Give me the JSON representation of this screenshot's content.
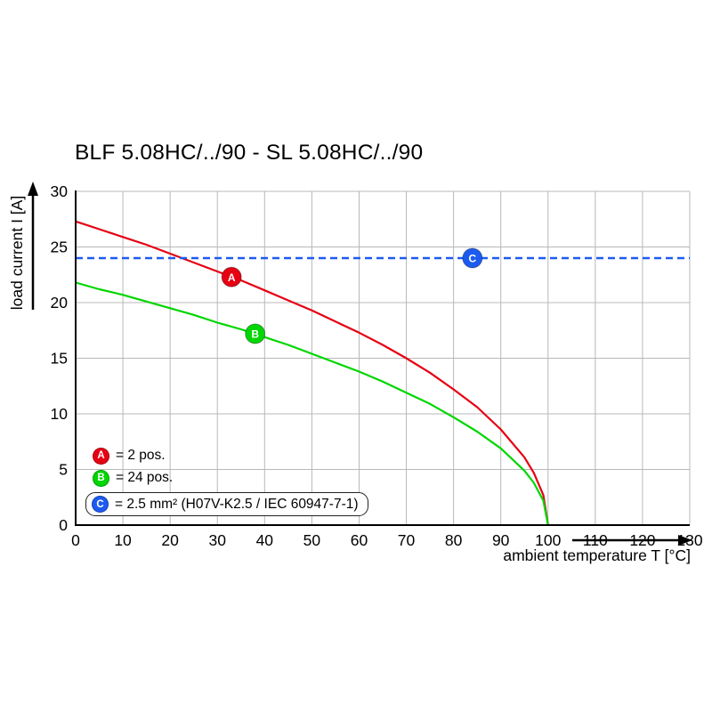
{
  "title": "BLF 5.08HC/../90 - SL 5.08HC/../90",
  "chart_data": {
    "type": "line",
    "title": "BLF 5.08HC/../90 - SL 5.08HC/../90",
    "xlabel": "ambient temperature T [°C]",
    "ylabel": "load current I [A]",
    "xlim": [
      0,
      130
    ],
    "ylim": [
      0,
      30
    ],
    "x_ticks": [
      0,
      10,
      20,
      30,
      40,
      50,
      60,
      70,
      80,
      90,
      100,
      110,
      120,
      130
    ],
    "y_ticks": [
      0,
      5,
      10,
      15,
      20,
      25,
      30
    ],
    "grid": true,
    "legend_position": "lower-left",
    "series": [
      {
        "name": "A",
        "legend_label": "= 2 pos.",
        "color": "#e60012",
        "line_style": "solid",
        "marker_at": [
          33,
          22.3
        ],
        "points": [
          [
            0,
            27.3
          ],
          [
            5,
            26.6
          ],
          [
            10,
            25.9
          ],
          [
            15,
            25.2
          ],
          [
            20,
            24.4
          ],
          [
            25,
            23.6
          ],
          [
            30,
            22.8
          ],
          [
            35,
            22.0
          ],
          [
            40,
            21.1
          ],
          [
            45,
            20.2
          ],
          [
            50,
            19.3
          ],
          [
            55,
            18.3
          ],
          [
            60,
            17.3
          ],
          [
            65,
            16.2
          ],
          [
            70,
            15.0
          ],
          [
            75,
            13.7
          ],
          [
            80,
            12.2
          ],
          [
            85,
            10.6
          ],
          [
            90,
            8.6
          ],
          [
            95,
            6.1
          ],
          [
            97,
            4.7
          ],
          [
            99,
            2.7
          ],
          [
            100,
            0
          ]
        ]
      },
      {
        "name": "B",
        "legend_label": "= 24 pos.",
        "color": "#00d600",
        "line_style": "solid",
        "marker_at": [
          38,
          17.2
        ],
        "points": [
          [
            0,
            21.8
          ],
          [
            5,
            21.2
          ],
          [
            10,
            20.7
          ],
          [
            15,
            20.1
          ],
          [
            20,
            19.5
          ],
          [
            25,
            18.9
          ],
          [
            30,
            18.2
          ],
          [
            35,
            17.6
          ],
          [
            40,
            16.9
          ],
          [
            45,
            16.2
          ],
          [
            50,
            15.4
          ],
          [
            55,
            14.6
          ],
          [
            60,
            13.8
          ],
          [
            65,
            12.9
          ],
          [
            70,
            11.9
          ],
          [
            75,
            10.9
          ],
          [
            80,
            9.7
          ],
          [
            85,
            8.4
          ],
          [
            90,
            6.9
          ],
          [
            95,
            4.9
          ],
          [
            97,
            3.8
          ],
          [
            99,
            2.2
          ],
          [
            100,
            0
          ]
        ]
      },
      {
        "name": "C",
        "legend_label": "= 2.5 mm² (H07V-K2.5 / IEC 60947-7-1)",
        "color": "#1d5bf0",
        "line_style": "dashed",
        "marker_at": [
          84,
          24
        ],
        "points": [
          [
            0,
            24
          ],
          [
            130,
            24
          ]
        ]
      }
    ]
  }
}
